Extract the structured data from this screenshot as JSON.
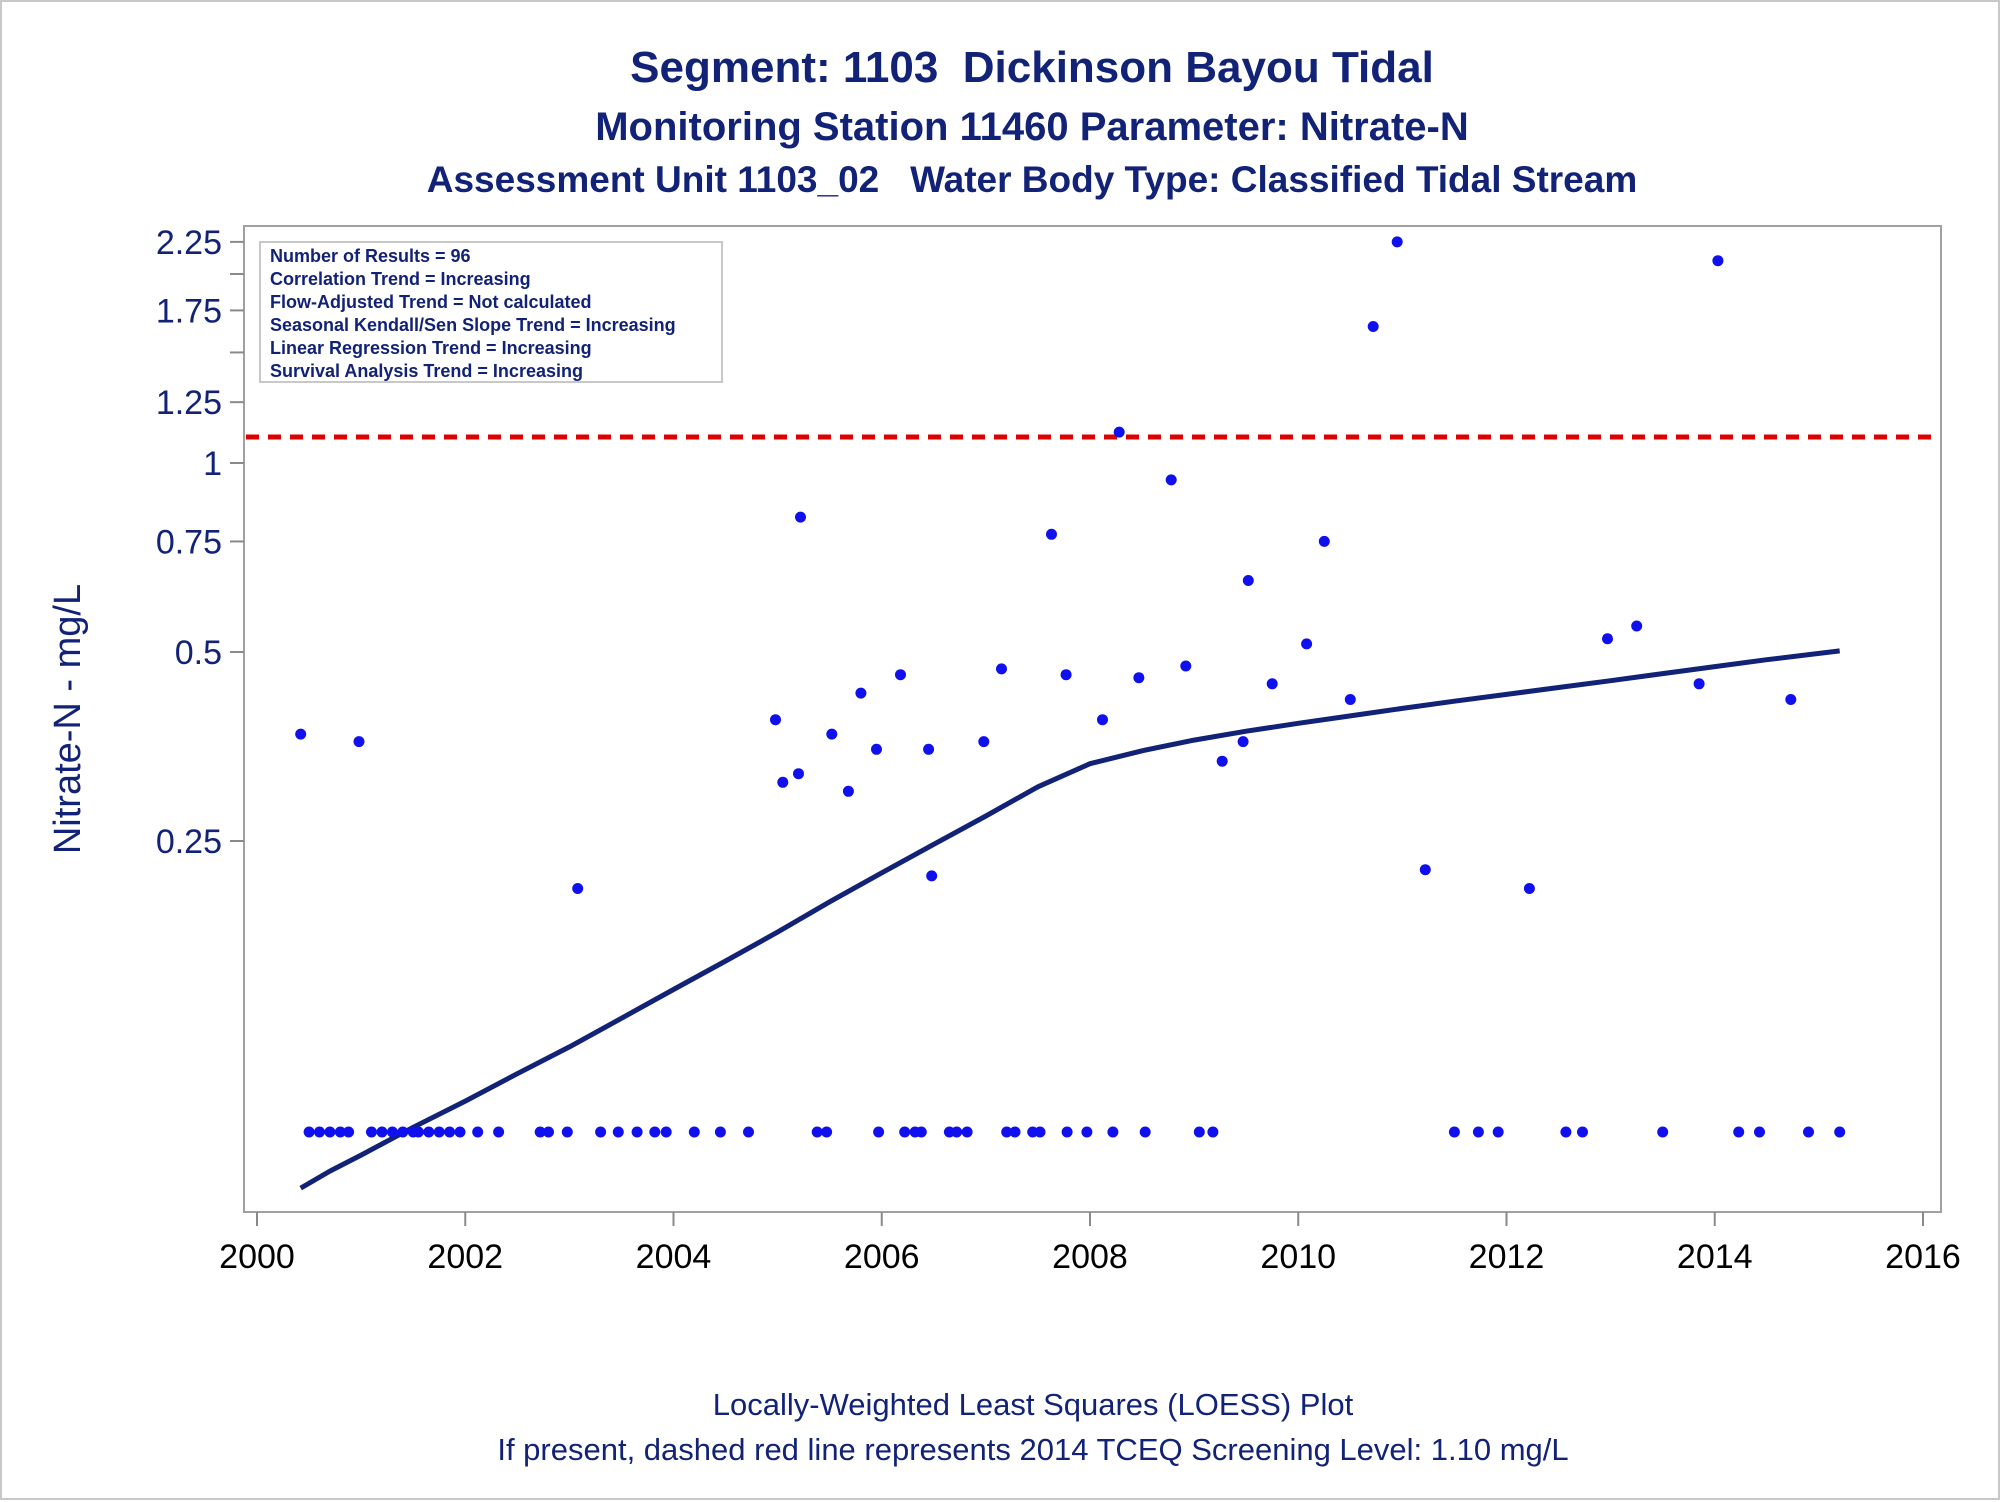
{
  "chart_data": {
    "type": "scatter",
    "title": "Segment: 1103  Dickinson Bayou Tidal",
    "subtitle": "Monitoring Station 11460 Parameter: Nitrate-N",
    "subtitle2": "Assessment Unit 1103_02   Water Body Type: Classified Tidal Stream",
    "xlabel": "",
    "ylabel": "Nitrate-N - mg/L",
    "footnotes": [
      "Locally-Weighted Least Squares (LOESS) Plot",
      "If present, dashed red line represents 2014 TCEQ Screening Level: 1.10 mg/L"
    ],
    "y_scale": "log",
    "xlim": [
      2000,
      2016
    ],
    "x_ticks": [
      "2000",
      "2002",
      "2004",
      "2006",
      "2008",
      "2010",
      "2012",
      "2014",
      "2016"
    ],
    "y_ticks": [
      "0.25",
      "0.5",
      "0.75",
      "1",
      "1.25",
      "1.75",
      "2.25"
    ],
    "y_minor_ticks": [
      1.5,
      2.0
    ],
    "legend_lines": [
      "Number of Results = 96",
      "Correlation Trend = Increasing",
      "Flow-Adjusted Trend = Not calculated",
      "Seasonal Kendall/Sen Slope Trend = Increasing",
      "Linear Regression Trend = Increasing",
      "Survival Analysis Trend = Increasing"
    ],
    "legend_placement": "top-left",
    "screening_level": 1.1,
    "colors": {
      "points": "#1010ee",
      "loess": "#112277",
      "screening": "#dd0000",
      "text": "#112277"
    },
    "points": [
      [
        2000.42,
        0.37
      ],
      [
        2000.98,
        0.36
      ],
      [
        2003.08,
        0.21
      ],
      [
        2004.98,
        0.39
      ],
      [
        2005.05,
        0.31
      ],
      [
        2005.2,
        0.32
      ],
      [
        2005.22,
        0.82
      ],
      [
        2005.52,
        0.37
      ],
      [
        2005.68,
        0.3
      ],
      [
        2005.8,
        0.43
      ],
      [
        2005.95,
        0.35
      ],
      [
        2006.18,
        0.46
      ],
      [
        2006.45,
        0.35
      ],
      [
        2006.48,
        0.22
      ],
      [
        2006.98,
        0.36
      ],
      [
        2007.15,
        0.47
      ],
      [
        2007.63,
        0.77
      ],
      [
        2007.77,
        0.46
      ],
      [
        2008.12,
        0.39
      ],
      [
        2008.28,
        1.12
      ],
      [
        2008.47,
        0.455
      ],
      [
        2008.78,
        0.94
      ],
      [
        2008.92,
        0.475
      ],
      [
        2009.27,
        0.335
      ],
      [
        2009.47,
        0.36
      ],
      [
        2009.52,
        0.65
      ],
      [
        2009.75,
        0.445
      ],
      [
        2010.08,
        0.515
      ],
      [
        2010.25,
        0.75
      ],
      [
        2010.5,
        0.42
      ],
      [
        2010.72,
        1.65
      ],
      [
        2010.95,
        2.25
      ],
      [
        2011.22,
        0.225
      ],
      [
        2012.22,
        0.21
      ],
      [
        2012.97,
        0.525
      ],
      [
        2013.25,
        0.55
      ],
      [
        2013.85,
        0.445
      ],
      [
        2014.03,
        2.1
      ],
      [
        2014.73,
        0.42
      ],
      [
        2000.5,
        0.086
      ],
      [
        2000.6,
        0.086
      ],
      [
        2000.7,
        0.086
      ],
      [
        2000.8,
        0.086
      ],
      [
        2000.88,
        0.086
      ],
      [
        2001.1,
        0.086
      ],
      [
        2001.2,
        0.086
      ],
      [
        2001.3,
        0.086
      ],
      [
        2001.4,
        0.086
      ],
      [
        2001.5,
        0.086
      ],
      [
        2001.55,
        0.086
      ],
      [
        2001.65,
        0.086
      ],
      [
        2001.75,
        0.086
      ],
      [
        2001.85,
        0.086
      ],
      [
        2001.95,
        0.086
      ],
      [
        2002.12,
        0.086
      ],
      [
        2002.32,
        0.086
      ],
      [
        2002.72,
        0.086
      ],
      [
        2002.8,
        0.086
      ],
      [
        2002.98,
        0.086
      ],
      [
        2003.3,
        0.086
      ],
      [
        2003.47,
        0.086
      ],
      [
        2003.65,
        0.086
      ],
      [
        2003.82,
        0.086
      ],
      [
        2003.93,
        0.086
      ],
      [
        2004.2,
        0.086
      ],
      [
        2004.45,
        0.086
      ],
      [
        2004.72,
        0.086
      ],
      [
        2005.38,
        0.086
      ],
      [
        2005.47,
        0.086
      ],
      [
        2005.97,
        0.086
      ],
      [
        2006.22,
        0.086
      ],
      [
        2006.32,
        0.086
      ],
      [
        2006.38,
        0.086
      ],
      [
        2006.65,
        0.086
      ],
      [
        2006.72,
        0.086
      ],
      [
        2006.82,
        0.086
      ],
      [
        2007.2,
        0.086
      ],
      [
        2007.28,
        0.086
      ],
      [
        2007.45,
        0.086
      ],
      [
        2007.52,
        0.086
      ],
      [
        2007.78,
        0.086
      ],
      [
        2007.97,
        0.086
      ],
      [
        2008.22,
        0.086
      ],
      [
        2008.53,
        0.086
      ],
      [
        2009.05,
        0.086
      ],
      [
        2009.18,
        0.086
      ],
      [
        2011.5,
        0.086
      ],
      [
        2011.73,
        0.086
      ],
      [
        2011.92,
        0.086
      ],
      [
        2012.57,
        0.086
      ],
      [
        2012.73,
        0.086
      ],
      [
        2013.5,
        0.086
      ],
      [
        2014.23,
        0.086
      ],
      [
        2014.43,
        0.086
      ],
      [
        2014.9,
        0.086
      ],
      [
        2015.2,
        0.086
      ]
    ],
    "loess": [
      [
        2000.42,
        0.07
      ],
      [
        2000.7,
        0.0745
      ],
      [
        2001.0,
        0.079
      ],
      [
        2001.5,
        0.0875
      ],
      [
        2002.0,
        0.0963
      ],
      [
        2002.5,
        0.1065
      ],
      [
        2003.0,
        0.1175
      ],
      [
        2003.5,
        0.1305
      ],
      [
        2004.0,
        0.145
      ],
      [
        2004.5,
        0.161
      ],
      [
        2005.0,
        0.179
      ],
      [
        2005.5,
        0.2
      ],
      [
        2006.0,
        0.2225
      ],
      [
        2006.5,
        0.247
      ],
      [
        2007.0,
        0.274
      ],
      [
        2007.5,
        0.305
      ],
      [
        2008.0,
        0.332
      ],
      [
        2008.5,
        0.348
      ],
      [
        2009.0,
        0.362
      ],
      [
        2009.5,
        0.374
      ],
      [
        2010.0,
        0.385
      ],
      [
        2010.5,
        0.3955
      ],
      [
        2011.0,
        0.4065
      ],
      [
        2011.5,
        0.4175
      ],
      [
        2012.0,
        0.428
      ],
      [
        2012.5,
        0.439
      ],
      [
        2013.0,
        0.45
      ],
      [
        2013.5,
        0.462
      ],
      [
        2014.0,
        0.474
      ],
      [
        2014.5,
        0.486
      ],
      [
        2015.2,
        0.502
      ]
    ]
  }
}
